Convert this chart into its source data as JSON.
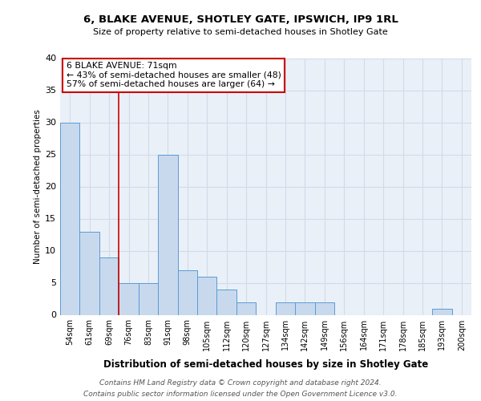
{
  "title1": "6, BLAKE AVENUE, SHOTLEY GATE, IPSWICH, IP9 1RL",
  "title2": "Size of property relative to semi-detached houses in Shotley Gate",
  "xlabel": "Distribution of semi-detached houses by size in Shotley Gate",
  "ylabel": "Number of semi-detached properties",
  "footnote1": "Contains HM Land Registry data © Crown copyright and database right 2024.",
  "footnote2": "Contains public sector information licensed under the Open Government Licence v3.0.",
  "annotation_line1": "6 BLAKE AVENUE: 71sqm",
  "annotation_line2": "← 43% of semi-detached houses are smaller (48)",
  "annotation_line3": "57% of semi-detached houses are larger (64) →",
  "bins": [
    "54sqm",
    "61sqm",
    "69sqm",
    "76sqm",
    "83sqm",
    "91sqm",
    "98sqm",
    "105sqm",
    "112sqm",
    "120sqm",
    "127sqm",
    "134sqm",
    "142sqm",
    "149sqm",
    "156sqm",
    "164sqm",
    "171sqm",
    "178sqm",
    "185sqm",
    "193sqm",
    "200sqm"
  ],
  "values": [
    30,
    13,
    9,
    5,
    5,
    25,
    7,
    6,
    4,
    2,
    0,
    2,
    2,
    2,
    0,
    0,
    0,
    0,
    0,
    1,
    0
  ],
  "bar_color": "#c8d9ee",
  "bar_edge_color": "#5b9bd5",
  "red_line_x": 2.5,
  "ylim": [
    0,
    40
  ],
  "yticks": [
    0,
    5,
    10,
    15,
    20,
    25,
    30,
    35,
    40
  ],
  "annotation_box_color": "#ffffff",
  "annotation_box_edge": "#cc0000",
  "red_line_color": "#cc0000",
  "grid_color": "#d0dce8",
  "bg_color": "#eaf0f8",
  "title1_fontsize": 9.5,
  "title2_fontsize": 8.0
}
